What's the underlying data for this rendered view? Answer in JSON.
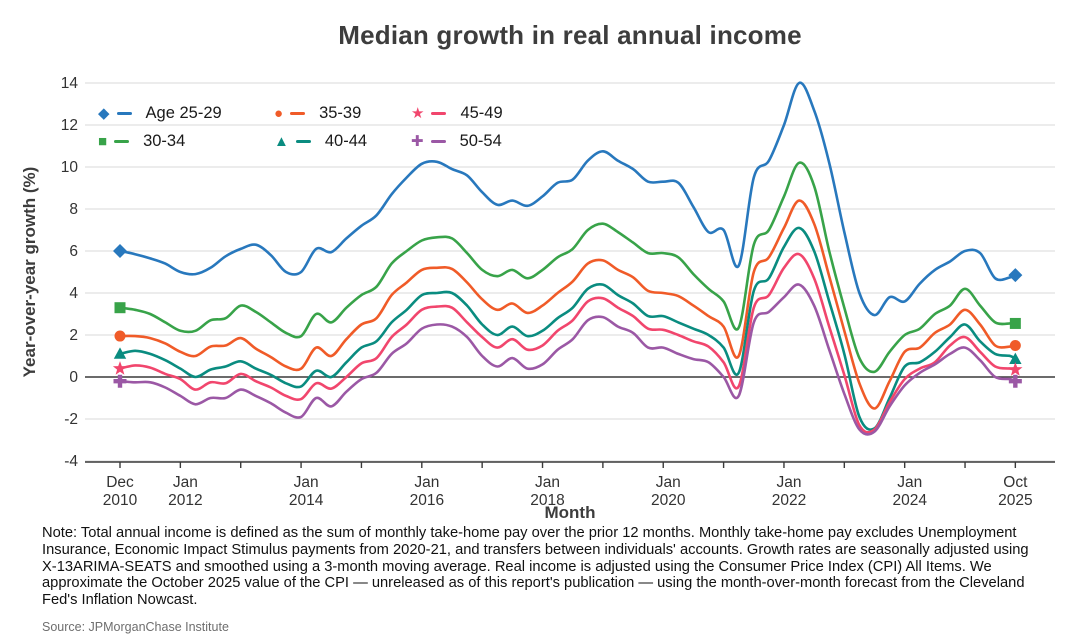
{
  "title": "Median growth in real annual income",
  "axes": {
    "ylabel": "Year-over-year growth (%)",
    "xlabel": "Month",
    "yticks": [
      14,
      12,
      10,
      8,
      6,
      4,
      2,
      0,
      -2,
      -4
    ],
    "xticks": [
      {
        "line1": "Dec",
        "line2": "2010",
        "month": 0
      },
      {
        "line1": "Jan",
        "line2": "2012",
        "month": 13
      },
      {
        "line1": "Jan",
        "line2": "2014",
        "month": 37
      },
      {
        "line1": "Jan",
        "line2": "2016",
        "month": 61
      },
      {
        "line1": "Jan",
        "line2": "2018",
        "month": 85
      },
      {
        "line1": "Jan",
        "line2": "2020",
        "month": 109
      },
      {
        "line1": "Jan",
        "line2": "2022",
        "month": 133
      },
      {
        "line1": "Jan",
        "line2": "2024",
        "month": 157
      },
      {
        "line1": "Oct",
        "line2": "2025",
        "month": 178
      }
    ]
  },
  "colors": {
    "grid": "#d9d9d9",
    "zero_line": "#3a3a3a",
    "axis": "#3a3a3a",
    "tick_label": "#333333"
  },
  "chart_data": {
    "type": "line",
    "title": "Median growth in real annual income",
    "xlabel": "Month",
    "ylabel": "Year-over-year growth (%)",
    "ylim": [
      -4,
      14
    ],
    "grid": true,
    "legend_position": "top-left",
    "x_dates": [
      "2010-12",
      "2011-03",
      "2011-06",
      "2011-09",
      "2011-12",
      "2012-03",
      "2012-06",
      "2012-09",
      "2012-12",
      "2013-03",
      "2013-06",
      "2013-09",
      "2013-12",
      "2014-03",
      "2014-06",
      "2014-09",
      "2014-12",
      "2015-03",
      "2015-06",
      "2015-09",
      "2015-12",
      "2016-03",
      "2016-06",
      "2016-09",
      "2016-12",
      "2017-03",
      "2017-06",
      "2017-09",
      "2017-12",
      "2018-03",
      "2018-06",
      "2018-09",
      "2018-12",
      "2019-03",
      "2019-06",
      "2019-09",
      "2019-12",
      "2020-03",
      "2020-06",
      "2020-09",
      "2020-12",
      "2021-03",
      "2021-06",
      "2021-09",
      "2021-12",
      "2022-03",
      "2022-06",
      "2022-09",
      "2022-12",
      "2023-03",
      "2023-06",
      "2023-09",
      "2023-12",
      "2024-03",
      "2024-06",
      "2024-09",
      "2024-12",
      "2025-03",
      "2025-06",
      "2025-09",
      "2025-10"
    ],
    "series": [
      {
        "name": "Age 25-29",
        "color": "#2878bd",
        "marker": "diamond",
        "values": [
          6.0,
          5.85,
          5.65,
          5.4,
          5.0,
          4.9,
          5.2,
          5.75,
          6.1,
          6.3,
          5.8,
          5.0,
          5.0,
          6.1,
          5.95,
          6.6,
          7.2,
          7.7,
          8.7,
          9.5,
          10.15,
          10.25,
          9.9,
          9.6,
          8.8,
          8.2,
          8.4,
          8.15,
          8.6,
          9.25,
          9.4,
          10.3,
          10.75,
          10.3,
          9.9,
          9.3,
          9.3,
          9.25,
          8.1,
          6.9,
          7.0,
          5.3,
          9.5,
          10.3,
          12.0,
          14.0,
          12.7,
          10.2,
          6.9,
          4.0,
          2.95,
          3.8,
          3.6,
          4.45,
          5.1,
          5.5,
          6.0,
          5.9,
          4.7,
          4.75,
          4.85
        ]
      },
      {
        "name": "30-34",
        "color": "#38a349",
        "marker": "square",
        "values": [
          3.3,
          3.2,
          3.0,
          2.6,
          2.2,
          2.2,
          2.7,
          2.8,
          3.4,
          3.1,
          2.6,
          2.1,
          1.95,
          3.0,
          2.6,
          3.3,
          3.9,
          4.3,
          5.4,
          6.0,
          6.5,
          6.65,
          6.6,
          5.9,
          5.1,
          4.8,
          5.1,
          4.7,
          5.1,
          5.7,
          6.1,
          7.0,
          7.3,
          6.9,
          6.4,
          5.9,
          5.9,
          5.7,
          4.9,
          4.2,
          3.6,
          2.35,
          6.3,
          7.0,
          8.6,
          10.2,
          9.1,
          6.0,
          3.3,
          0.9,
          0.25,
          1.2,
          2.0,
          2.3,
          3.0,
          3.4,
          4.2,
          3.4,
          2.6,
          2.55,
          2.55
        ]
      },
      {
        "name": "35-39",
        "color": "#f05b28",
        "marker": "circle",
        "values": [
          1.95,
          1.95,
          1.85,
          1.6,
          1.2,
          1.0,
          1.45,
          1.5,
          1.85,
          1.35,
          0.95,
          0.5,
          0.4,
          1.4,
          1.0,
          1.8,
          2.5,
          2.8,
          3.9,
          4.5,
          5.1,
          5.2,
          5.15,
          4.5,
          3.7,
          3.2,
          3.5,
          3.05,
          3.4,
          4.0,
          4.55,
          5.4,
          5.55,
          5.1,
          4.75,
          4.1,
          4.0,
          3.85,
          3.4,
          2.9,
          2.4,
          1.0,
          5.0,
          5.7,
          7.1,
          8.4,
          7.3,
          4.8,
          2.2,
          -0.3,
          -1.5,
          -0.2,
          1.2,
          1.4,
          2.1,
          2.5,
          3.2,
          2.5,
          1.5,
          1.45,
          1.5
        ]
      },
      {
        "name": "40-44",
        "color": "#0a8c80",
        "marker": "triangle",
        "values": [
          1.1,
          1.25,
          1.1,
          0.8,
          0.4,
          0.0,
          0.35,
          0.5,
          0.75,
          0.4,
          0.1,
          -0.3,
          -0.45,
          0.3,
          0.0,
          0.7,
          1.4,
          1.7,
          2.6,
          3.2,
          3.9,
          4.0,
          4.0,
          3.4,
          2.5,
          2.0,
          2.4,
          1.95,
          2.2,
          2.8,
          3.3,
          4.2,
          4.4,
          3.9,
          3.5,
          2.9,
          2.9,
          2.6,
          2.3,
          2.0,
          1.4,
          0.2,
          4.1,
          4.7,
          6.2,
          7.1,
          6.0,
          3.6,
          1.1,
          -1.9,
          -2.45,
          -1.0,
          0.5,
          0.7,
          1.2,
          1.9,
          2.5,
          1.7,
          1.1,
          1.0,
          0.85
        ]
      },
      {
        "name": "45-49",
        "color": "#f1466d",
        "marker": "star",
        "values": [
          0.4,
          0.55,
          0.45,
          0.15,
          -0.1,
          -0.6,
          -0.25,
          -0.3,
          0.15,
          -0.2,
          -0.5,
          -0.9,
          -1.05,
          -0.3,
          -0.55,
          0.0,
          0.65,
          0.9,
          1.9,
          2.5,
          3.2,
          3.35,
          3.3,
          2.6,
          1.9,
          1.4,
          1.8,
          1.3,
          1.5,
          2.2,
          2.7,
          3.6,
          3.75,
          3.3,
          2.9,
          2.3,
          2.25,
          2.0,
          1.7,
          1.45,
          0.7,
          -0.45,
          3.3,
          3.9,
          5.2,
          5.85,
          4.7,
          2.4,
          0.1,
          -2.3,
          -2.5,
          -1.2,
          -0.1,
          0.4,
          0.7,
          1.5,
          1.9,
          1.2,
          0.5,
          0.4,
          0.35
        ]
      },
      {
        "name": "50-54",
        "color": "#9b58a5",
        "marker": "plus",
        "values": [
          -0.2,
          -0.25,
          -0.25,
          -0.5,
          -0.9,
          -1.3,
          -1.0,
          -1.0,
          -0.6,
          -0.9,
          -1.25,
          -1.7,
          -1.9,
          -1.0,
          -1.4,
          -0.7,
          -0.1,
          0.2,
          1.1,
          1.6,
          2.3,
          2.5,
          2.4,
          1.9,
          1.0,
          0.5,
          0.9,
          0.4,
          0.6,
          1.3,
          1.8,
          2.7,
          2.85,
          2.4,
          2.1,
          1.4,
          1.4,
          1.1,
          0.85,
          0.7,
          0.0,
          -0.9,
          2.6,
          3.1,
          3.8,
          4.4,
          3.4,
          1.3,
          -0.8,
          -2.5,
          -2.6,
          -1.4,
          -0.4,
          0.2,
          0.6,
          1.1,
          1.4,
          0.8,
          0.0,
          -0.1,
          -0.2
        ]
      }
    ]
  },
  "note": "Note: Total annual income is defined as the sum of monthly take-home pay over the prior 12 months. Monthly take-home pay excludes Unemployment Insurance, Economic Impact Stimulus payments from 2020-21, and transfers between individuals' accounts. Growth rates are seasonally adjusted using X-13ARIMA-SEATS and smoothed using a 3-month moving average. Real income is adjusted using the Consumer Price Index (CPI) All Items. We approximate the October 2025 value of the CPI — unreleased as of this report's publication — using the month-over-month forecast from the Cleveland Fed's Inflation Nowcast.",
  "source": "Source: JPMorganChase Institute"
}
